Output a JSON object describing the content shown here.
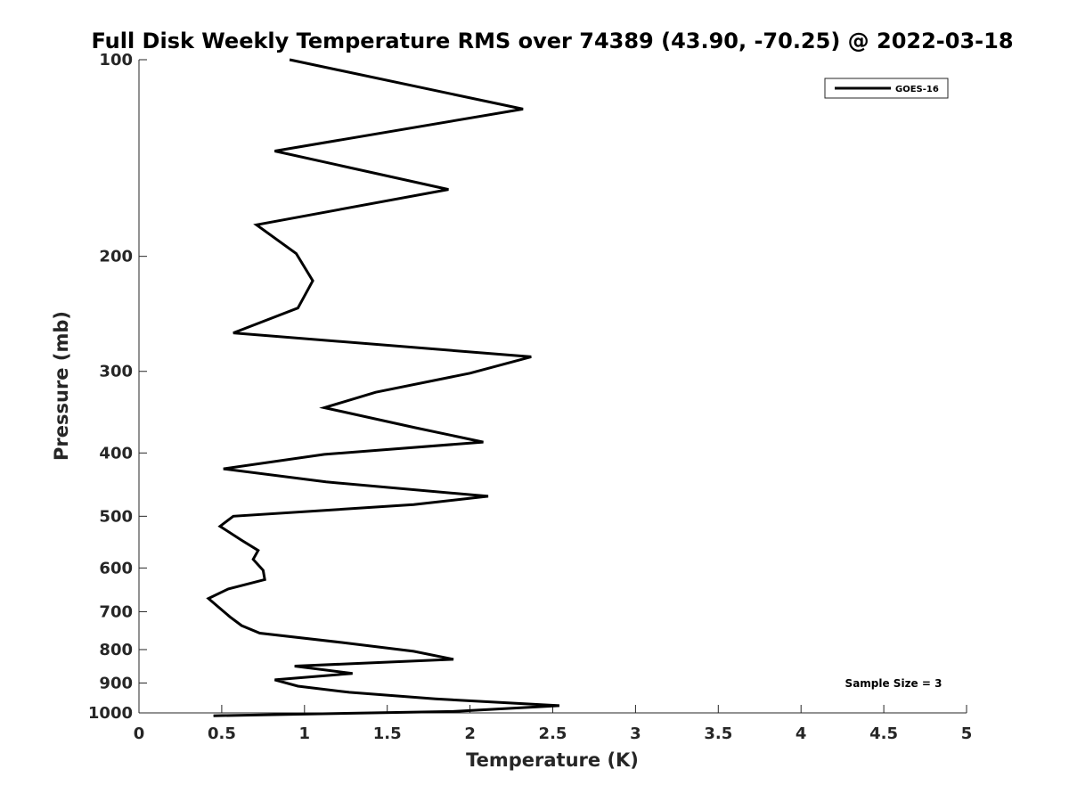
{
  "chart_data": {
    "type": "line",
    "title": "Full Disk Weekly Temperature RMS over 74389 (43.90, -70.25) @ 2022-03-18",
    "xlabel": "Temperature (K)",
    "ylabel": "Pressure (mb)",
    "xlim": [
      0,
      5
    ],
    "ylim": [
      100,
      1000
    ],
    "yscale": "log",
    "y_reversed": true,
    "x_ticks": [
      0,
      0.5,
      1,
      1.5,
      2,
      2.5,
      3,
      3.5,
      4,
      4.5,
      5
    ],
    "x_tick_labels": [
      "0",
      "0.5",
      "1",
      "1.5",
      "2",
      "2.5",
      "3",
      "3.5",
      "4",
      "4.5",
      "5"
    ],
    "y_ticks": [
      100,
      200,
      300,
      400,
      500,
      600,
      700,
      800,
      900,
      1000
    ],
    "y_tick_labels": [
      "100",
      "200",
      "300",
      "400",
      "500",
      "600",
      "700",
      "800",
      "900",
      "1000"
    ],
    "grid": false,
    "legend_position": "top-right",
    "annotation": "Sample Size = 3",
    "series": [
      {
        "name": "GOES-16",
        "color": "#000000",
        "x": [
          0.91,
          2.32,
          0.82,
          1.87,
          0.71,
          0.95,
          1.05,
          0.96,
          0.57,
          2.37,
          2.0,
          1.43,
          1.12,
          1.67,
          2.08,
          1.12,
          0.51,
          1.13,
          2.11,
          1.66,
          0.57,
          0.49,
          0.62,
          0.72,
          0.69,
          0.75,
          0.76,
          0.54,
          0.42,
          0.49,
          0.55,
          0.62,
          0.73,
          1.22,
          1.66,
          1.9,
          0.94,
          1.29,
          0.82,
          0.96,
          1.27,
          1.79,
          2.54,
          1.9,
          0.45
        ],
        "y": [
          100,
          119,
          138,
          158,
          179,
          198,
          218,
          240,
          262,
          285,
          302,
          323,
          341,
          366,
          385,
          402,
          423,
          443,
          466,
          480,
          500,
          518,
          544,
          564,
          582,
          605,
          625,
          646,
          668,
          692,
          713,
          735,
          755,
          780,
          805,
          828,
          848,
          870,
          890,
          910,
          930,
          952,
          975,
          995,
          1010
        ]
      }
    ]
  }
}
